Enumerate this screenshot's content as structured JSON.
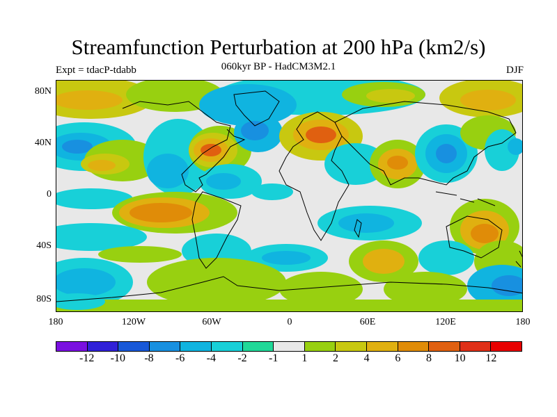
{
  "title": "Streamfunction Perturbation at 200 hPa (km2/s)",
  "subtitle": "060kyr BP - HadCM3M2.1",
  "experiment": "Expt = tdacP-tdabb",
  "season": "DJF",
  "y_axis_labels": [
    "80N",
    "40N",
    "0",
    "40S",
    "80S"
  ],
  "x_axis_labels": [
    "180",
    "120W",
    "60W",
    "0",
    "60E",
    "120E",
    "180"
  ],
  "colorbar": {
    "labels": [
      "-12",
      "-10",
      "-8",
      "-6",
      "-4",
      "-2",
      "-1",
      "1",
      "2",
      "4",
      "6",
      "8",
      "10",
      "12"
    ],
    "colors": [
      "#7a10e0",
      "#3020d8",
      "#1858d8",
      "#1890e0",
      "#10b4e0",
      "#18d0d8",
      "#20d898",
      "#e8e8e8",
      "#98d010",
      "#c8c810",
      "#e0b010",
      "#e08c08",
      "#e06010",
      "#e03018",
      "#e80000"
    ]
  },
  "map_colors": {
    "background": "#e8e8e8",
    "dark_blue": "#1890e0",
    "light_blue": "#10b4e0",
    "cyan": "#18d0d8",
    "green": "#98d010",
    "yellow": "#c8c810",
    "orange": "#e0b010",
    "dark_orange": "#e08c08",
    "red_orange": "#e06010",
    "coast": "#000000"
  }
}
